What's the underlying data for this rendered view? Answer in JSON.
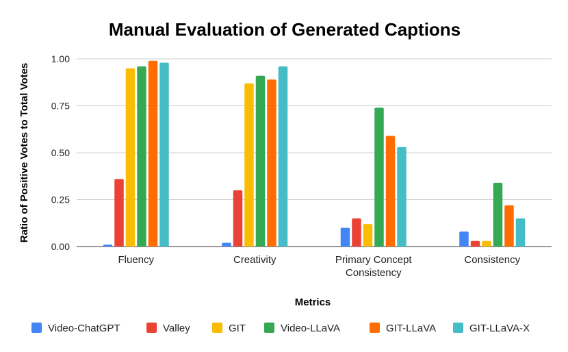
{
  "chart_data": {
    "type": "bar",
    "title": "Manual Evaluation of Generated Captions",
    "xlabel": "Metrics",
    "ylabel": "Ratio of Positive Votes to Total Votes",
    "ylim": [
      0,
      1.0
    ],
    "yticks": [
      "0.00",
      "0.25",
      "0.50",
      "0.75",
      "1.00"
    ],
    "ytick_values": [
      0,
      0.25,
      0.5,
      0.75,
      1.0
    ],
    "grid": true,
    "legend_position": "bottom",
    "categories": [
      [
        "Fluency"
      ],
      [
        "Creativity"
      ],
      [
        "Primary Concept",
        "Consistency"
      ],
      [
        "Consistency"
      ]
    ],
    "series": [
      {
        "name": "Video-ChatGPT",
        "color": "#4285F4",
        "values": [
          0.01,
          0.02,
          0.1,
          0.08
        ]
      },
      {
        "name": "Valley",
        "color": "#EA4335",
        "values": [
          0.36,
          0.3,
          0.15,
          0.03
        ]
      },
      {
        "name": "GIT",
        "color": "#FBBC04",
        "values": [
          0.95,
          0.87,
          0.12,
          0.03
        ]
      },
      {
        "name": "Video-LLaVA",
        "color": "#34A853",
        "values": [
          0.96,
          0.91,
          0.74,
          0.34
        ]
      },
      {
        "name": "GIT-LLaVA",
        "color": "#FF6D01",
        "values": [
          0.99,
          0.89,
          0.59,
          0.22
        ]
      },
      {
        "name": "GIT-LLaVA-X",
        "color": "#46BDC6",
        "values": [
          0.98,
          0.96,
          0.53,
          0.15
        ]
      }
    ]
  }
}
